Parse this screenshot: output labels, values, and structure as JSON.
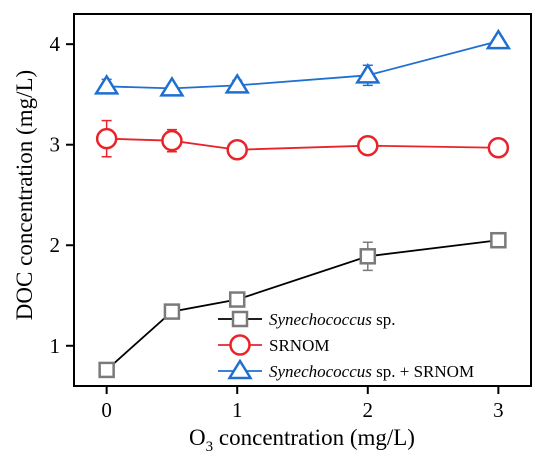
{
  "chart_data": {
    "type": "line",
    "xlabel": {
      "prefix": "O",
      "sub": "3",
      "suffix": " concentration (mg/L)"
    },
    "ylabel": "DOC concentration (mg/L)",
    "xlim": [
      -0.25,
      3.25
    ],
    "ylim": [
      0.6,
      4.3
    ],
    "xticks": [
      0,
      1,
      2,
      3
    ],
    "xtick_labels": [
      "0",
      "1",
      "2",
      "3"
    ],
    "yticks": [
      1,
      2,
      3,
      4
    ],
    "ytick_labels": [
      "1",
      "2",
      "3",
      "4"
    ],
    "grid": false,
    "legend_position": "bottom-right",
    "x": [
      0,
      0.5,
      1,
      2,
      3
    ],
    "series": [
      {
        "key": "syn",
        "name": "Synechococcus sp.",
        "legend_parts": [
          {
            "text": "Synechococcus",
            "italic": true
          },
          {
            "text": " sp.",
            "italic": false
          }
        ],
        "marker": "square",
        "color": "#000000",
        "marker_color": "#7a7a7a",
        "values": [
          0.76,
          1.34,
          1.46,
          1.89,
          2.05
        ],
        "errors": [
          0.05,
          0.05,
          0.03,
          0.14,
          0.03
        ]
      },
      {
        "key": "srnom",
        "name": "SRNOM",
        "legend_parts": [
          {
            "text": "SRNOM",
            "italic": false
          }
        ],
        "marker": "circle",
        "color": "#e8242a",
        "marker_color": "#e8242a",
        "values": [
          3.06,
          3.04,
          2.95,
          2.99,
          2.97
        ],
        "errors": [
          0.18,
          0.11,
          0.05,
          0.06,
          0.02
        ]
      },
      {
        "key": "mix",
        "name": "Synechococcus sp. + SRNOM",
        "legend_parts": [
          {
            "text": "Synechococcus",
            "italic": true
          },
          {
            "text": " sp. + SRNOM",
            "italic": false
          }
        ],
        "marker": "triangle",
        "color": "#1f6fd1",
        "marker_color": "#1f6fd1",
        "values": [
          3.58,
          3.56,
          3.59,
          3.69,
          4.03
        ],
        "errors": [
          0.07,
          0.03,
          0.05,
          0.1,
          0.04
        ]
      }
    ]
  }
}
